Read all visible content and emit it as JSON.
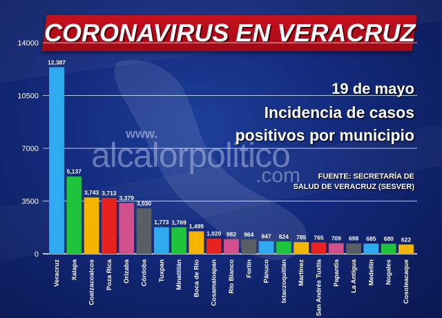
{
  "header": {
    "title": "CORONAVIRUS EN VERACRUZ",
    "date": "19 de mayo",
    "subtitle_line1": "Incidencia de casos",
    "subtitle_line2": "positivos por municipio",
    "source_line1": "FUENTE: SECRETARÍA DE",
    "source_line2": "SALUD DE VERACRUZ (SESVER)"
  },
  "watermark": {
    "prefix": "www.",
    "name": "alcalorpolitico",
    "suffix": ".com"
  },
  "chart_data": {
    "type": "bar",
    "title": "",
    "xlabel": "",
    "ylabel": "",
    "ylim": [
      0,
      14000
    ],
    "yticks": [
      0,
      3500,
      7000,
      10500,
      14000
    ],
    "grid": true,
    "categories": [
      "Veracruz",
      "Xalapa",
      "Coatzacoalcos",
      "Poza Rica",
      "Orizaba",
      "Córdoba",
      "Tuxpan",
      "Minatitlán",
      "Boca de Río",
      "Cosamaloapan",
      "Río Blanco",
      "Fortín",
      "Pánuco",
      "Ixtaczoquitlán",
      "Martínez",
      "San Andrés Tuxtla",
      "Papantla",
      "La Antigua",
      "Medellín",
      "Nogales",
      "Cosoleacaque"
    ],
    "values": [
      12387,
      5137,
      3743,
      3713,
      3379,
      3030,
      1773,
      1769,
      1499,
      1020,
      982,
      964,
      847,
      824,
      785,
      765,
      709,
      698,
      685,
      680,
      622
    ],
    "value_labels": [
      "12,387",
      "5,137",
      "3,743",
      "3,713",
      "3,379",
      "3,030",
      "1,773",
      "1,769",
      "1,499",
      "1,020",
      "982",
      "964",
      "847",
      "824",
      "785",
      "765",
      "709",
      "698",
      "685",
      "680",
      "622"
    ],
    "colors": [
      "#2fa9f0",
      "#1ec43c",
      "#f5b400",
      "#e8231f",
      "#d2508c",
      "#5a5f66",
      "#2fa9f0",
      "#1ec43c",
      "#f5b400",
      "#e8231f",
      "#d2508c",
      "#5a5f66",
      "#2fa9f0",
      "#1ec43c",
      "#f5b400",
      "#e8231f",
      "#d2508c",
      "#5a5f66",
      "#2fa9f0",
      "#1ec43c",
      "#f5b400"
    ]
  }
}
